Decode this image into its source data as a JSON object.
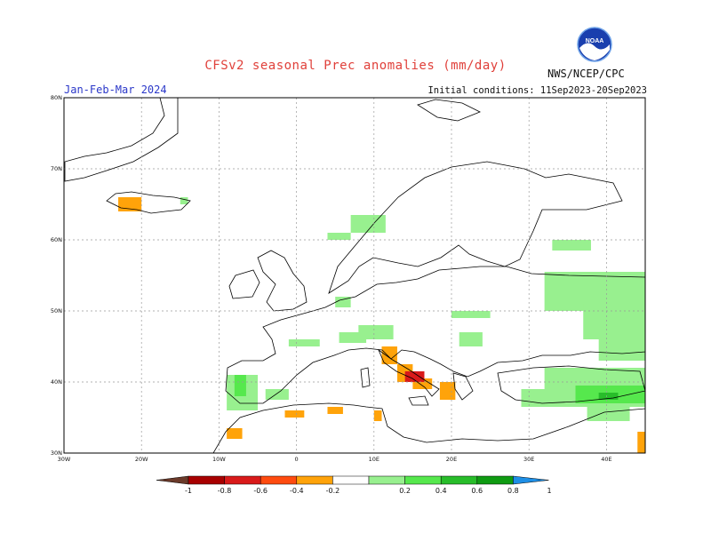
{
  "header": {
    "title": "CFSv2 seasonal Prec anomalies (mm/day)",
    "period": "Jan-Feb-Mar 2024",
    "initial_conditions": "Initial conditions: 11Sep2023-20Sep2023",
    "agency": "NWS/NCEP/CPC",
    "logo_text": "NOAA"
  },
  "map": {
    "lon_range": [
      -30,
      45
    ],
    "lat_range": [
      30,
      80
    ],
    "lat_ticks": [
      "80N",
      "70N",
      "60N",
      "50N",
      "40N",
      "30N"
    ],
    "lon_ticks": [
      "30W",
      "20W",
      "10W",
      "0",
      "10E",
      "20E",
      "30E",
      "40E"
    ],
    "grid": true
  },
  "colorbar": {
    "labels": [
      "-1",
      "-0.8",
      "-0.6",
      "-0.4",
      "-0.2",
      "0.2",
      "0.4",
      "0.6",
      "0.8",
      "1"
    ],
    "colors": [
      "#6b3a2a",
      "#a80000",
      "#d91a1a",
      "#ff4b0f",
      "#ffa30a",
      "#ffffff",
      "#98f08f",
      "#56e84d",
      "#28bd2a",
      "#0f9b12",
      "#1e8fe6"
    ]
  },
  "colors": {
    "title": "#e0403a",
    "period": "#2b38c9",
    "pos_light": "#98f08f",
    "pos_med": "#56e84d",
    "pos_dark": "#28bd2a",
    "neg_light": "#ffa30a",
    "neg_med": "#d91a1a"
  },
  "anomalies": {
    "positive_light": [
      {
        "lon": [
          33,
          38
        ],
        "lat": [
          58.5,
          60
        ]
      },
      {
        "lon": [
          32,
          45
        ],
        "lat": [
          50,
          55.5
        ]
      },
      {
        "lon": [
          37,
          45
        ],
        "lat": [
          46,
          51
        ]
      },
      {
        "lon": [
          39,
          45
        ],
        "lat": [
          43,
          46.5
        ]
      },
      {
        "lon": [
          32,
          45
        ],
        "lat": [
          39,
          42
        ]
      },
      {
        "lon": [
          29,
          45
        ],
        "lat": [
          36.5,
          39
        ]
      },
      {
        "lon": [
          37.5,
          43
        ],
        "lat": [
          34.5,
          36.5
        ]
      },
      {
        "lon": [
          -9,
          -5
        ],
        "lat": [
          36,
          41
        ]
      },
      {
        "lon": [
          -4,
          -1
        ],
        "lat": [
          37.5,
          39
        ]
      },
      {
        "lon": [
          8,
          12.5
        ],
        "lat": [
          46,
          48
        ]
      },
      {
        "lon": [
          5.5,
          9
        ],
        "lat": [
          45.5,
          47
        ]
      },
      {
        "lon": [
          -1,
          3
        ],
        "lat": [
          45,
          46
        ]
      },
      {
        "lon": [
          21,
          24
        ],
        "lat": [
          45,
          47
        ]
      },
      {
        "lon": [
          20,
          25
        ],
        "lat": [
          49,
          50
        ]
      },
      {
        "lon": [
          5,
          7
        ],
        "lat": [
          50.5,
          52
        ]
      },
      {
        "lon": [
          7,
          11.5
        ],
        "lat": [
          61,
          63.5
        ]
      },
      {
        "lon": [
          4,
          7
        ],
        "lat": [
          60,
          61
        ]
      },
      {
        "lon": [
          -15,
          -14
        ],
        "lat": [
          65,
          66
        ]
      }
    ],
    "positive_medium": [
      {
        "lon": [
          -8,
          -6.5
        ],
        "lat": [
          38,
          41
        ]
      },
      {
        "lon": [
          36,
          45
        ],
        "lat": [
          37,
          39.5
        ]
      }
    ],
    "positive_dark": [
      {
        "lon": [
          39,
          41.5
        ],
        "lat": [
          37.5,
          38.5
        ]
      }
    ],
    "negative_light": [
      {
        "lon": [
          -23,
          -20
        ],
        "lat": [
          64,
          66
        ]
      },
      {
        "lon": [
          11,
          13
        ],
        "lat": [
          42.5,
          45
        ]
      },
      {
        "lon": [
          13,
          15
        ],
        "lat": [
          40,
          42.5
        ]
      },
      {
        "lon": [
          15,
          17.5
        ],
        "lat": [
          39,
          40.5
        ]
      },
      {
        "lon": [
          18.5,
          20.5
        ],
        "lat": [
          37.5,
          40
        ]
      },
      {
        "lon": [
          10,
          11
        ],
        "lat": [
          34.5,
          36
        ]
      },
      {
        "lon": [
          -1.5,
          1
        ],
        "lat": [
          35,
          36
        ]
      },
      {
        "lon": [
          4,
          6
        ],
        "lat": [
          35.5,
          36.5
        ]
      },
      {
        "lon": [
          -9,
          -7
        ],
        "lat": [
          32,
          33.5
        ]
      },
      {
        "lon": [
          44,
          45
        ],
        "lat": [
          30,
          33
        ]
      }
    ],
    "negative_medium": [
      {
        "lon": [
          14,
          16.5
        ],
        "lat": [
          40,
          41.5
        ]
      }
    ]
  }
}
